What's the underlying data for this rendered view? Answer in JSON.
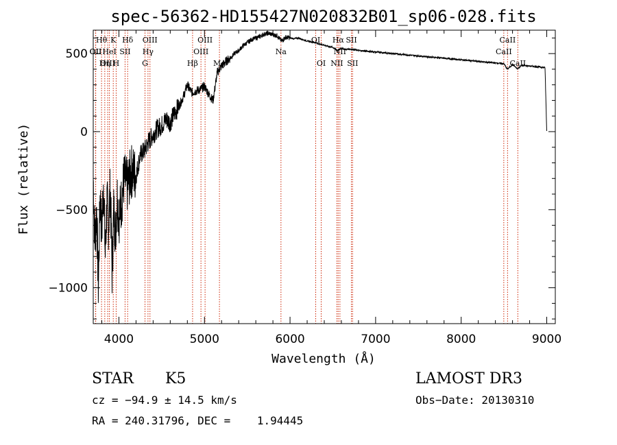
{
  "chart_data": {
    "type": "line",
    "title": "spec-56362-HD155427N020832B01_sp06-028.fits",
    "xlabel": "Wavelength (Å)",
    "ylabel": "Flux (relative)",
    "xlim": [
      3700,
      9100
    ],
    "ylim": [
      -1230,
      650
    ],
    "xticks": [
      4000,
      5000,
      6000,
      7000,
      8000,
      9000
    ],
    "yticks": [
      -1000,
      -500,
      0,
      500
    ],
    "series": [
      {
        "name": "flux",
        "x": [
          3700,
          3720,
          3740,
          3760,
          3780,
          3800,
          3820,
          3840,
          3860,
          3880,
          3900,
          3920,
          3940,
          3960,
          3980,
          4000,
          4030,
          4060,
          4100,
          4150,
          4200,
          4250,
          4300,
          4350,
          4400,
          4450,
          4500,
          4550,
          4600,
          4650,
          4700,
          4750,
          4800,
          4850,
          4900,
          4950,
          5000,
          5050,
          5100,
          5150,
          5200,
          5250,
          5300,
          5350,
          5400,
          5450,
          5500,
          5550,
          5600,
          5650,
          5700,
          5750,
          5800,
          5850,
          5900,
          5950,
          6000,
          6050,
          6100,
          6150,
          6200,
          6250,
          6300,
          6350,
          6400,
          6450,
          6500,
          6560,
          6600,
          6650,
          6700,
          6750,
          6800,
          6900,
          7000,
          7100,
          7200,
          7300,
          7400,
          7500,
          7600,
          7700,
          7800,
          7900,
          8000,
          8100,
          8200,
          8300,
          8400,
          8500,
          8540,
          8600,
          8660,
          8700,
          8800,
          8900,
          8980,
          9000
        ],
        "y": [
          -300,
          -700,
          -500,
          -1000,
          -400,
          -650,
          -300,
          -800,
          -450,
          -600,
          -350,
          -900,
          -500,
          -650,
          -400,
          -550,
          -450,
          -300,
          -350,
          -250,
          -280,
          -150,
          -120,
          -60,
          -20,
          20,
          40,
          80,
          60,
          120,
          160,
          220,
          300,
          250,
          260,
          270,
          290,
          240,
          200,
          380,
          420,
          450,
          470,
          500,
          520,
          550,
          570,
          590,
          600,
          610,
          625,
          630,
          620,
          615,
          580,
          605,
          600,
          595,
          600,
          590,
          580,
          575,
          570,
          560,
          555,
          545,
          540,
          520,
          535,
          525,
          530,
          525,
          520,
          515,
          510,
          505,
          500,
          495,
          490,
          485,
          480,
          475,
          470,
          465,
          460,
          455,
          450,
          445,
          440,
          435,
          400,
          430,
          400,
          425,
          420,
          415,
          410,
          0
        ]
      }
    ],
    "lines": [
      {
        "label": "OII",
        "x": 3727,
        "row": 2
      },
      {
        "label": "Hθ",
        "x": 3797,
        "row": 1
      },
      {
        "label": "OII",
        "x": 3729,
        "row": 2
      },
      {
        "label": "Hη",
        "x": 3835,
        "row": 3
      },
      {
        "label": "OIII",
        "x": 3869,
        "row": 3
      },
      {
        "label": "HeI",
        "x": 3889,
        "row": 2
      },
      {
        "label": "K",
        "x": 3934,
        "row": 1
      },
      {
        "label": "H",
        "x": 3968,
        "row": 3
      },
      {
        "label": "SII",
        "x": 4072,
        "row": 2
      },
      {
        "label": "Hδ",
        "x": 4102,
        "row": 1
      },
      {
        "label": "G",
        "x": 4305,
        "row": 3
      },
      {
        "label": "Hγ",
        "x": 4340,
        "row": 2
      },
      {
        "label": "OIII",
        "x": 4363,
        "row": 1
      },
      {
        "label": "Hβ",
        "x": 4861,
        "row": 3
      },
      {
        "label": "OIII",
        "x": 4959,
        "row": 2
      },
      {
        "label": "OIII",
        "x": 5007,
        "row": 1
      },
      {
        "label": "Mg",
        "x": 5175,
        "row": 3
      },
      {
        "label": "Na",
        "x": 5894,
        "row": 2
      },
      {
        "label": "OI",
        "x": 6300,
        "row": 1
      },
      {
        "label": "OI",
        "x": 6364,
        "row": 3
      },
      {
        "label": "NII",
        "x": 6548,
        "row": 3
      },
      {
        "label": "Hα",
        "x": 6563,
        "row": 1
      },
      {
        "label": "NII",
        "x": 6583,
        "row": 2
      },
      {
        "label": "SII",
        "x": 6717,
        "row": 1
      },
      {
        "label": "SII",
        "x": 6731,
        "row": 3
      },
      {
        "label": "CaII",
        "x": 8498,
        "row": 2
      },
      {
        "label": "CaII",
        "x": 8542,
        "row": 1
      },
      {
        "label": "CaII",
        "x": 8662,
        "row": 3
      }
    ]
  },
  "info": {
    "class_label": "STAR",
    "subclass": "K5",
    "survey": "LAMOST DR3",
    "cz": "cz = −94.9 ± 14.5 km/s",
    "obs_date": "Obs−Date: 20130310",
    "coords": "RA = 240.31796, DEC =    1.94445"
  },
  "colors": {
    "spectrum": "#000000",
    "line_marker": "#cc2200",
    "axis": "#000000",
    "background": "#ffffff"
  }
}
